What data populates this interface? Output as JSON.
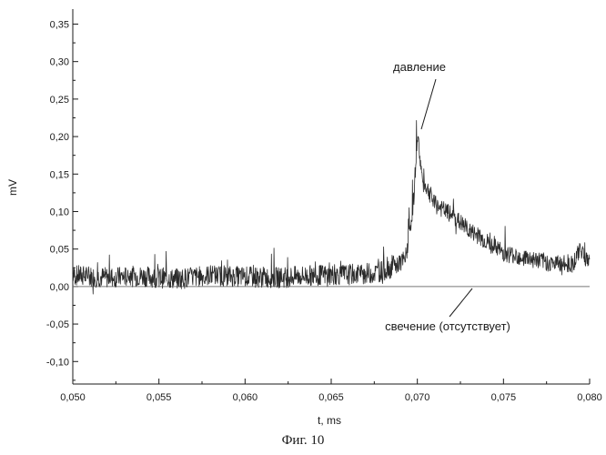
{
  "chart_data": {
    "type": "line",
    "xlabel": "t, ms",
    "ylabel": "mV",
    "xlim": [
      0.05,
      0.08
    ],
    "ylim": [
      -0.13,
      0.37
    ],
    "xticks": [
      "0,050",
      "0,055",
      "0,060",
      "0,065",
      "0,070",
      "0,075",
      "0,080"
    ],
    "xtick_values": [
      0.05,
      0.055,
      0.06,
      0.065,
      0.07,
      0.075,
      0.08
    ],
    "yticks": [
      "0,35",
      "0,30",
      "0,25",
      "0,20",
      "0,15",
      "0,10",
      "0,05",
      "0,00",
      "-0,05",
      "-0,10"
    ],
    "ytick_values": [
      0.35,
      0.3,
      0.25,
      0.2,
      0.15,
      0.1,
      0.05,
      0.0,
      -0.05,
      -0.1
    ],
    "grid": false,
    "series": [
      {
        "name": "давление",
        "x": [
          0.05,
          0.052,
          0.054,
          0.056,
          0.058,
          0.06,
          0.062,
          0.064,
          0.066,
          0.0675,
          0.0685,
          0.0693,
          0.0696,
          0.0698,
          0.07,
          0.0703,
          0.0706,
          0.071,
          0.072,
          0.073,
          0.074,
          0.075,
          0.076,
          0.077,
          0.078,
          0.079,
          0.0795,
          0.08
        ],
        "values": [
          0.015,
          0.012,
          0.014,
          0.01,
          0.015,
          0.013,
          0.012,
          0.015,
          0.016,
          0.018,
          0.025,
          0.035,
          0.08,
          0.12,
          0.205,
          0.14,
          0.13,
          0.11,
          0.095,
          0.075,
          0.06,
          0.045,
          0.04,
          0.035,
          0.03,
          0.03,
          0.05,
          0.03
        ]
      },
      {
        "name": "свечение (отсутствует)",
        "x": [
          0.05,
          0.08
        ],
        "values": [
          0.0,
          0.0
        ]
      }
    ],
    "annotations": [
      {
        "text": "давление",
        "target_x": 0.0701,
        "target_y": 0.205
      },
      {
        "text": "свечение (отсутствует)",
        "target_x": 0.0735,
        "target_y": 0.0
      }
    ]
  },
  "figure": {
    "caption": "Фиг. 10"
  },
  "colors": {
    "signal": "#2a2a2a",
    "baseline": "#777777",
    "axis": "#1a1a1a"
  }
}
